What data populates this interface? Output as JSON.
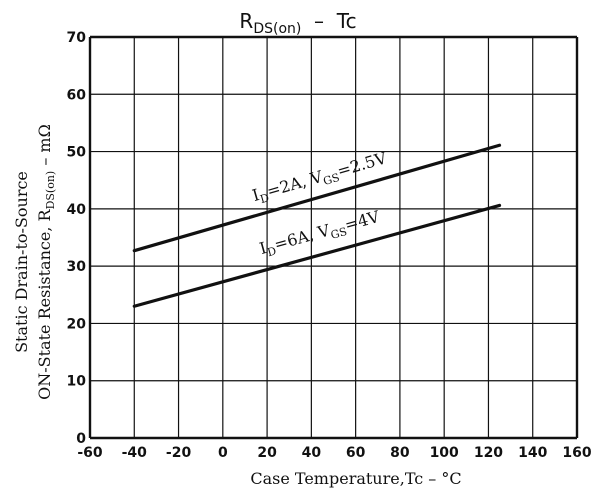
{
  "chart_data": {
    "type": "line",
    "title": {
      "main": "R",
      "sub": "DS(on)",
      "rest": "  –  Tc"
    },
    "xlabel": "Case Temperature,Tc – °C",
    "ylabel": {
      "line1": "Static Drain-to-Source",
      "line2_main": "ON-State Resistance, R",
      "line2_sub": "DS(on)",
      "line2_rest": " – mΩ"
    },
    "xlim": [
      -60,
      160
    ],
    "ylim": [
      0,
      70
    ],
    "x_ticks": [
      -60,
      -40,
      -20,
      0,
      20,
      40,
      60,
      80,
      100,
      120,
      140,
      160
    ],
    "y_ticks": [
      0,
      10,
      20,
      30,
      40,
      50,
      60,
      70
    ],
    "x_tick_labels": [
      "-60",
      "-40",
      "-20",
      "0",
      "20",
      "40",
      "60",
      "80",
      "100",
      "120",
      "140",
      "160"
    ],
    "y_tick_labels": [
      "0",
      "10",
      "20",
      "30",
      "40",
      "50",
      "60",
      "70"
    ],
    "grid": true,
    "series": [
      {
        "label_parts": [
          "I",
          "D",
          "=2A, V",
          "GS",
          "=2.5V"
        ],
        "x": [
          -40,
          125
        ],
        "y": [
          32.7,
          51.1
        ]
      },
      {
        "label_parts": [
          "I",
          "D",
          "=6A, V",
          "GS",
          "=4V"
        ],
        "x": [
          -40,
          125
        ],
        "y": [
          23.0,
          40.6
        ]
      }
    ]
  }
}
